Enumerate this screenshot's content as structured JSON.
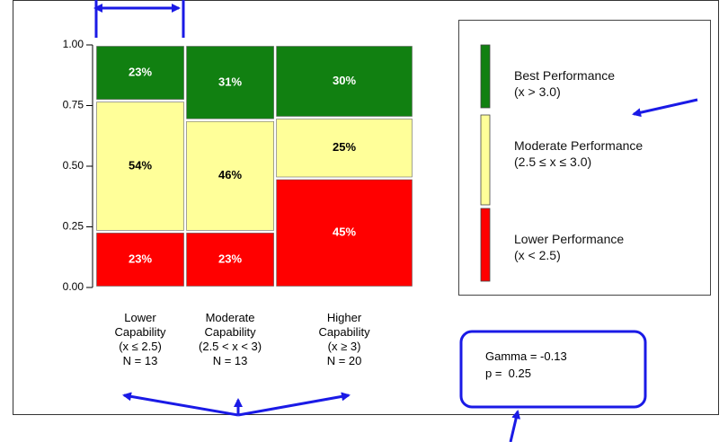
{
  "chart_data": {
    "type": "mosaic",
    "categories": [
      "Lower Capability",
      "Moderate Capability",
      "Higher Capability"
    ],
    "category_ranges": [
      "(x ≤ 2.5)",
      "(2.5 < x < 3)",
      "(x ≥ 3)"
    ],
    "counts": [
      13,
      13,
      20
    ],
    "count_labels": [
      "N = 13",
      "N = 13",
      "N = 20"
    ],
    "series": [
      {
        "name": "Best Performance",
        "range": "(x > 3.0)",
        "color": "#118011",
        "label_color": "#ffffff",
        "values": [
          0.23,
          0.31,
          0.3
        ],
        "value_labels": [
          "23%",
          "31%",
          "30%"
        ]
      },
      {
        "name": "Moderate Performance",
        "range": "(2.5 ≤ x ≤ 3.0)",
        "color": "#ffff99",
        "label_color": "#000000",
        "values": [
          0.54,
          0.46,
          0.25
        ],
        "value_labels": [
          "54%",
          "46%",
          "25%"
        ]
      },
      {
        "name": "Lower Performance",
        "range": "(x < 2.5)",
        "color": "#ff0000",
        "label_color": "#ffffff",
        "values": [
          0.23,
          0.23,
          0.45
        ],
        "value_labels": [
          "23%",
          "23%",
          "45%"
        ]
      }
    ],
    "ylim": [
      0,
      1
    ],
    "yticks": [
      {
        "value": 0,
        "label": "0.00"
      },
      {
        "value": 0.25,
        "label": "0.25"
      },
      {
        "value": 0.5,
        "label": "0.50"
      },
      {
        "value": 0.75,
        "label": "0.75"
      },
      {
        "value": 1,
        "label": "1.00"
      }
    ],
    "annotations": [
      "Gamma = -0.13",
      "p =  0.25"
    ]
  }
}
